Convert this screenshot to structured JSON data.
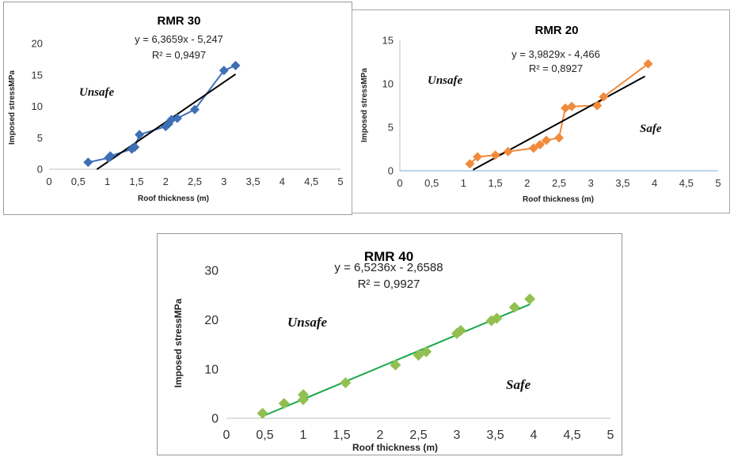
{
  "chart_data": [
    {
      "type": "scatter",
      "title": "RMR 30",
      "equation": "y = 6,3659x - 5,247",
      "r2": "R² = 0,9497",
      "xlabel": "Roof thickness (m)",
      "ylabel": "Imposed stressMPa",
      "xlim": [
        0,
        5
      ],
      "ylim": [
        0,
        20
      ],
      "xticks": [
        "0",
        "0,5",
        "1",
        "1,5",
        "2",
        "2,5",
        "3",
        "3,5",
        "4",
        "4,5",
        "5"
      ],
      "yticks": [
        "0",
        "5",
        "10",
        "15",
        "20"
      ],
      "regions": [
        "Unsafe"
      ],
      "color": "#3f6fb5",
      "trend_color": "#000000",
      "fit": {
        "slope": 6.3659,
        "intercept": -5.247,
        "from": 0.82,
        "to": 3.2
      },
      "points": [
        {
          "x": 0.67,
          "y": 1.1
        },
        {
          "x": 1.02,
          "y": 1.8
        },
        {
          "x": 1.05,
          "y": 2.1
        },
        {
          "x": 1.42,
          "y": 3.2
        },
        {
          "x": 1.47,
          "y": 3.5
        },
        {
          "x": 1.55,
          "y": 5.5
        },
        {
          "x": 2.0,
          "y": 6.8
        },
        {
          "x": 2.05,
          "y": 7.2
        },
        {
          "x": 2.1,
          "y": 7.9
        },
        {
          "x": 2.2,
          "y": 8.1
        },
        {
          "x": 2.5,
          "y": 9.5
        },
        {
          "x": 3.0,
          "y": 15.7
        },
        {
          "x": 3.2,
          "y": 16.5
        }
      ]
    },
    {
      "type": "scatter",
      "title": "RMR 20",
      "equation": "y = 3,9829x - 4,466",
      "r2": "R² = 0,8927",
      "xlabel": "Roof thickness (m)",
      "ylabel": "Imposed stressMPa",
      "xlim": [
        0,
        5
      ],
      "ylim": [
        0,
        15
      ],
      "xticks": [
        "0",
        "0,5",
        "1",
        "1,5",
        "2",
        "2,5",
        "3",
        "3,5",
        "4",
        "4,5",
        "5"
      ],
      "yticks": [
        "0",
        "5",
        "10",
        "15"
      ],
      "regions": [
        "Unsafe",
        "Safe"
      ],
      "color": "#f08a3c",
      "trend_color": "#000000",
      "fit": {
        "slope": 3.9829,
        "intercept": -4.466,
        "from": 1.15,
        "to": 3.85
      },
      "points": [
        {
          "x": 1.1,
          "y": 0.8
        },
        {
          "x": 1.22,
          "y": 1.6
        },
        {
          "x": 1.5,
          "y": 1.8
        },
        {
          "x": 1.7,
          "y": 2.2
        },
        {
          "x": 2.1,
          "y": 2.6
        },
        {
          "x": 2.2,
          "y": 3.0
        },
        {
          "x": 2.3,
          "y": 3.5
        },
        {
          "x": 2.5,
          "y": 3.8
        },
        {
          "x": 2.6,
          "y": 7.2
        },
        {
          "x": 2.7,
          "y": 7.4
        },
        {
          "x": 3.1,
          "y": 7.5
        },
        {
          "x": 3.2,
          "y": 8.5
        },
        {
          "x": 3.9,
          "y": 12.3
        }
      ]
    },
    {
      "type": "scatter",
      "title": "RMR 40",
      "equation": "y = 6,5236x - 2,6588",
      "r2": "R² = 0,9927",
      "xlabel": "Roof thickness (m)",
      "ylabel": "Imposed stressMPa",
      "xlim": [
        0,
        5
      ],
      "ylim": [
        0,
        30
      ],
      "xticks": [
        "0",
        "0,5",
        "1",
        "1,5",
        "2",
        "2,5",
        "3",
        "3,5",
        "4",
        "4,5",
        "5"
      ],
      "yticks": [
        "0",
        "10",
        "20",
        "30"
      ],
      "regions": [
        "Unsafe",
        "Safe"
      ],
      "color": "#92c050",
      "trend_color": "#1aa84a",
      "fit": {
        "slope": 6.5236,
        "intercept": -2.6588,
        "from": 0.5,
        "to": 3.95
      },
      "points": [
        {
          "x": 0.47,
          "y": 1.0
        },
        {
          "x": 0.75,
          "y": 3.0
        },
        {
          "x": 1.0,
          "y": 3.8
        },
        {
          "x": 1.0,
          "y": 4.8
        },
        {
          "x": 1.55,
          "y": 7.2
        },
        {
          "x": 2.2,
          "y": 10.8
        },
        {
          "x": 2.5,
          "y": 12.8
        },
        {
          "x": 2.6,
          "y": 13.5
        },
        {
          "x": 3.0,
          "y": 17.2
        },
        {
          "x": 3.05,
          "y": 17.8
        },
        {
          "x": 3.45,
          "y": 19.8
        },
        {
          "x": 3.52,
          "y": 20.3
        },
        {
          "x": 3.75,
          "y": 22.5
        },
        {
          "x": 3.95,
          "y": 24.2
        }
      ]
    }
  ]
}
